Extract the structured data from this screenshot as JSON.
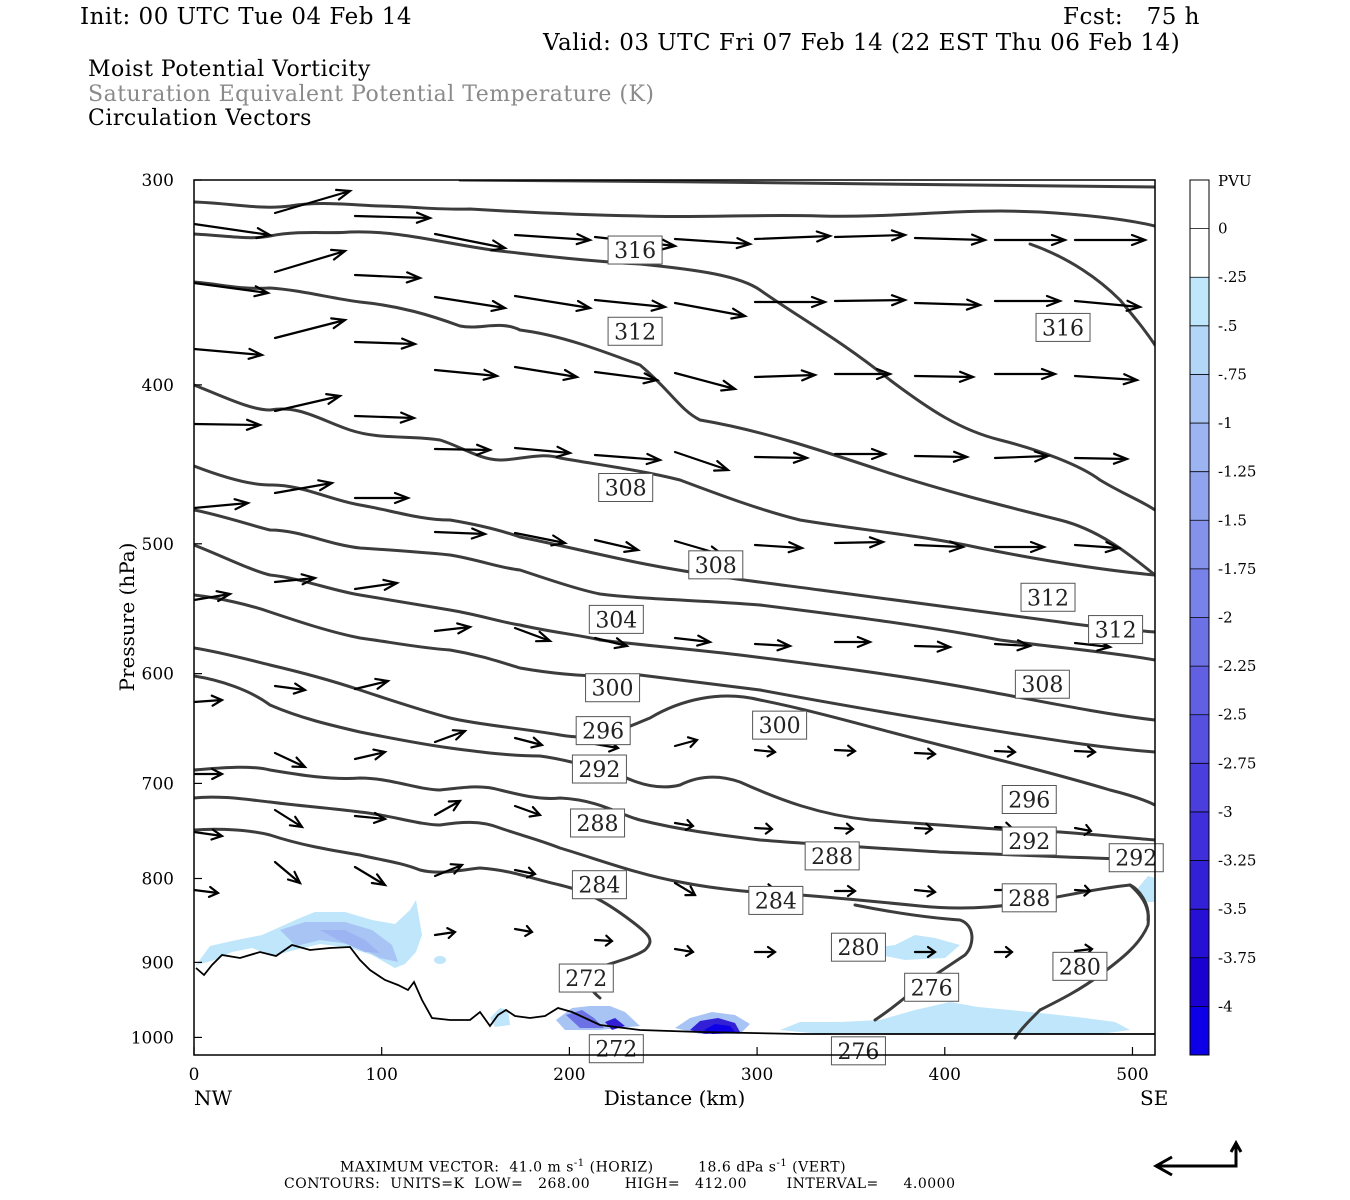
{
  "header": {
    "init": "Init: 00 UTC Tue 04 Feb 14",
    "fcst": "Fcst:   75 h",
    "valid": "Valid: 03 UTC Fri 07 Feb 14 (22 EST Thu 06 Feb 14)"
  },
  "fields": {
    "line1": "Moist Potential Vorticity",
    "line2": "Saturation Equivalent Potential Temperature (K)",
    "line3": "Circulation Vectors",
    "line2_color": "#8a8a8a"
  },
  "footer": {
    "max_vector_prefix": "MAXIMUM VECTOR:  41.0 m s",
    "max_vector_exp": "-1",
    "max_vector_mid": " (HORIZ)         18.6 dPa s",
    "max_vector_exp2": "-1",
    "max_vector_suffix": " (VERT)",
    "contours": "CONTOURS:  UNITS=K  LOW=   268.00       HIGH=   412.00        INTERVAL=     4.0000"
  },
  "chart_data": {
    "type": "cross-section",
    "xlabel": "Distance (km)",
    "ylabel": "Pressure (hPa)",
    "xlim": [
      0,
      512
    ],
    "ylim": [
      1025,
      300
    ],
    "y_scale": "log-pressure",
    "x_ticks": [
      0,
      100,
      200,
      300,
      400,
      500
    ],
    "y_ticks": [
      300,
      400,
      500,
      600,
      700,
      800,
      900,
      1000
    ],
    "x_end_labels": {
      "left": "NW",
      "right": "SE"
    },
    "colorbar": {
      "title": "PVU",
      "labels": [
        "0",
        "-.25",
        "-.5",
        "-.75",
        "-1",
        "-1.25",
        "-1.5",
        "-1.75",
        "-2",
        "-2.25",
        "-2.5",
        "-2.75",
        "-3",
        "-3.25",
        "-3.5",
        "-3.75",
        "-4"
      ],
      "colors": [
        "#ffffff",
        "#ffffff",
        "#bfe6fb",
        "#b3d5f8",
        "#a8c4f5",
        "#9cb4f2",
        "#90a3ef",
        "#8492ec",
        "#7982e9",
        "#6d71e6",
        "#6160e3",
        "#5550e0",
        "#4a3fdd",
        "#3e2fda",
        "#3220d7",
        "#2610d4",
        "#1a00d1",
        "#0e00e6"
      ]
    },
    "contour_labels": [
      {
        "text": "316",
        "x": 235,
        "p": 331
      },
      {
        "text": "316",
        "x": 463,
        "p": 369
      },
      {
        "text": "312",
        "x": 235,
        "p": 371
      },
      {
        "text": "312",
        "x": 455,
        "p": 539
      },
      {
        "text": "312",
        "x": 491,
        "p": 564
      },
      {
        "text": "308",
        "x": 230,
        "p": 462
      },
      {
        "text": "308",
        "x": 278,
        "p": 515
      },
      {
        "text": "308",
        "x": 452,
        "p": 609
      },
      {
        "text": "304",
        "x": 225,
        "p": 556
      },
      {
        "text": "300",
        "x": 223,
        "p": 612
      },
      {
        "text": "300",
        "x": 312,
        "p": 645
      },
      {
        "text": "296",
        "x": 218,
        "p": 650
      },
      {
        "text": "296",
        "x": 445,
        "p": 716
      },
      {
        "text": "292",
        "x": 216,
        "p": 686
      },
      {
        "text": "292",
        "x": 445,
        "p": 759
      },
      {
        "text": "292",
        "x": 502,
        "p": 777
      },
      {
        "text": "288",
        "x": 215,
        "p": 740
      },
      {
        "text": "288",
        "x": 340,
        "p": 775
      },
      {
        "text": "288",
        "x": 445,
        "p": 822
      },
      {
        "text": "284",
        "x": 216,
        "p": 807
      },
      {
        "text": "284",
        "x": 310,
        "p": 825
      },
      {
        "text": "280",
        "x": 354,
        "p": 881
      },
      {
        "text": "280",
        "x": 472,
        "p": 905
      },
      {
        "text": "276",
        "x": 393,
        "p": 932
      },
      {
        "text": "276",
        "x": 354,
        "p": 1019
      },
      {
        "text": "272",
        "x": 209,
        "p": 920
      },
      {
        "text": "272",
        "x": 225,
        "p": 1016
      }
    ]
  }
}
